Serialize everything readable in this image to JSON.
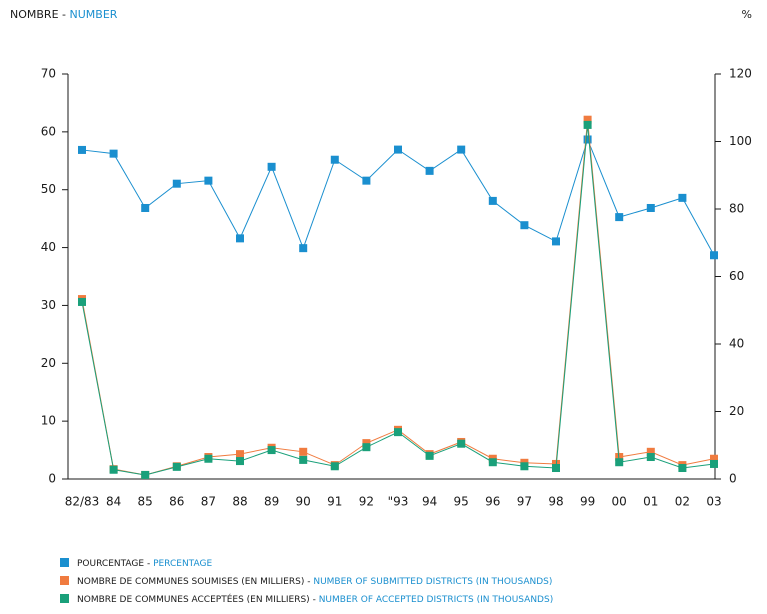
{
  "chart_data": {
    "type": "line",
    "header": {
      "fr": "NOMBRE",
      "sep": " - ",
      "en": "NUMBER"
    },
    "y2_unit": "%",
    "categories": [
      "82/83",
      "84",
      "85",
      "86",
      "87",
      "88",
      "89",
      "90",
      "91",
      "92",
      "\"93",
      "94",
      "95",
      "96",
      "97",
      "98",
      "99",
      "00",
      "01",
      "02",
      "03"
    ],
    "ylim": [
      0,
      70
    ],
    "yticks": [
      0,
      10,
      20,
      30,
      40,
      50,
      60,
      70
    ],
    "y2lim": [
      0,
      120
    ],
    "y2ticks": [
      0,
      20,
      40,
      60,
      80,
      100,
      120
    ],
    "series": [
      {
        "name": "POURCENTAGE",
        "name_en": "PERCENTAGE",
        "color": "#1a8fcf",
        "axis": "y2",
        "values": [
          97.5,
          96.4,
          80.3,
          87.5,
          88.4,
          71.3,
          92.5,
          68.4,
          94.6,
          88.4,
          97.6,
          91.3,
          97.6,
          82.4,
          75.2,
          70.4,
          100.6,
          77.6,
          80.3,
          83.3,
          66.3
        ]
      },
      {
        "name": "NOMBRE DE COMMUNES SOUMISES (EN MILLIERS)",
        "name_en": "NUMBER OF SUBMITTED DISTRICTS (IN THOUSANDS)",
        "color": "#f07b3f",
        "values": [
          31.1,
          1.7,
          0.7,
          2.2,
          3.8,
          4.3,
          5.4,
          4.7,
          2.4,
          6.2,
          8.5,
          4.3,
          6.4,
          3.5,
          2.8,
          2.6,
          62.1,
          3.8,
          4.7,
          2.4,
          3.5
        ]
      },
      {
        "name": "NOMBRE DE COMMUNES ACCEPTÉES (EN MILLIERS)",
        "name_en": "NUMBER OF ACCEPTED DISTRICTS (IN THOUSANDS)",
        "color": "#1aa07a",
        "values": [
          30.6,
          1.6,
          0.7,
          2.1,
          3.5,
          3.1,
          5.0,
          3.3,
          2.2,
          5.5,
          8.1,
          4.0,
          6.1,
          2.9,
          2.2,
          1.9,
          61.2,
          2.9,
          3.8,
          1.9,
          2.6
        ]
      }
    ]
  }
}
